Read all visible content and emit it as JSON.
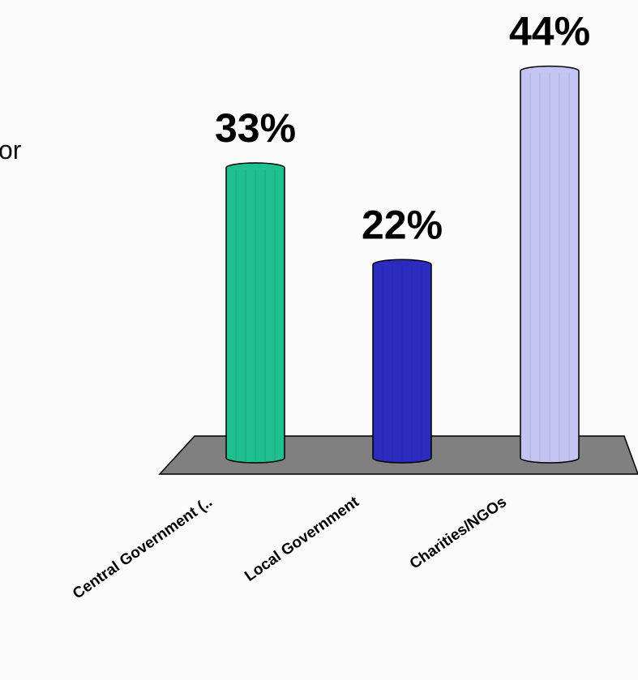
{
  "chart_data": {
    "type": "bar",
    "annotations": [
      "or"
    ],
    "categories": [
      "Central Government (..",
      "Local Government",
      "Charities/NGOs"
    ],
    "values": [
      33,
      22,
      44
    ],
    "value_labels": [
      "33%",
      "22%",
      "44%"
    ],
    "colors": [
      "#1fbf8f",
      "#2b2bbf",
      "#c4c4f2"
    ],
    "floor_color": "#808080"
  }
}
